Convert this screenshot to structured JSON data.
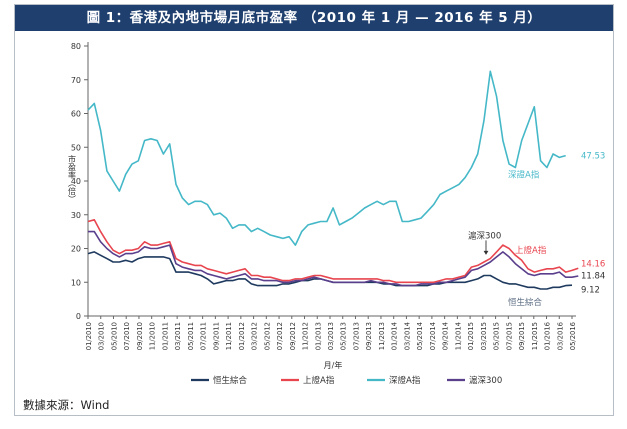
{
  "title": "圖 1：香港及內地市場月底市盈率 （2010 年 1 月 — 2016 年 5 月）",
  "source": "數據來源：Wind",
  "chart_data": {
    "type": "line",
    "xlabel": "月/年",
    "ylabel": "市盈率（倍）",
    "ylim": [
      0,
      80
    ],
    "yticks": [
      0,
      10,
      20,
      30,
      40,
      50,
      60,
      70,
      80
    ],
    "grid": false,
    "legend_position": "bottom",
    "x_tick_labels": [
      "01/2010",
      "03/2010",
      "05/2010",
      "07/2010",
      "09/2010",
      "11/2010",
      "01/2011",
      "03/2011",
      "05/2011",
      "07/2011",
      "09/2011",
      "11/2011",
      "01/2012",
      "03/2012",
      "05/2012",
      "07/2012",
      "09/2012",
      "11/2012",
      "01/2013",
      "03/2013",
      "05/2013",
      "07/2013",
      "09/2013",
      "11/2013",
      "01/2014",
      "03/2014",
      "05/2014",
      "07/2014",
      "09/2014",
      "11/2014",
      "01/2015",
      "03/2015",
      "05/2015",
      "07/2015",
      "09/2015",
      "11/2015",
      "01/2016",
      "03/2016",
      "05/2016"
    ],
    "series": [
      {
        "name": "恒生綜合",
        "color": "#1f3a5f",
        "label": "恒生綜合",
        "end_value": "9.12",
        "values": [
          18.5,
          19,
          18,
          17,
          16,
          16,
          16.5,
          16,
          17,
          17.5,
          17.5,
          17.5,
          17.5,
          17,
          13,
          13,
          13,
          12.5,
          12,
          11,
          9.5,
          10,
          10.5,
          10.5,
          11,
          11,
          9.5,
          9,
          9,
          9,
          9,
          9.5,
          9.5,
          10,
          10.5,
          10.5,
          11,
          11,
          10.5,
          10,
          10,
          10,
          10,
          10,
          10,
          10,
          10,
          9.5,
          9.5,
          9,
          9,
          9,
          9,
          9,
          9,
          9.5,
          9.5,
          10,
          10,
          10,
          10,
          10.5,
          11,
          12,
          12,
          11,
          10,
          9.5,
          9.5,
          9,
          8.5,
          8.5,
          8,
          8,
          8.5,
          8.5,
          9,
          9.12
        ]
      },
      {
        "name": "上證A指",
        "color": "#e8454f",
        "label": "上證A指",
        "end_value": "14.16",
        "values": [
          28,
          28.5,
          25,
          22,
          19.5,
          18.5,
          19.5,
          19.5,
          20,
          22,
          21,
          21,
          21.5,
          22,
          17,
          16,
          15.5,
          15,
          15,
          14,
          13.5,
          13,
          12.5,
          13,
          13.5,
          14,
          12,
          12,
          11.5,
          11.5,
          11,
          10.5,
          10.5,
          11,
          11,
          11.5,
          12,
          12,
          11.5,
          11,
          11,
          11,
          11,
          11,
          11,
          11,
          11,
          10.5,
          10.5,
          10,
          10,
          10,
          10,
          10,
          10,
          10,
          10.5,
          11,
          11,
          11.5,
          12,
          14.5,
          15,
          16,
          17,
          19,
          21,
          20,
          18,
          16.5,
          14,
          13,
          13.5,
          14,
          14,
          14.5,
          13,
          13.5,
          14.16
        ]
      },
      {
        "name": "深證A指",
        "color": "#45b8c8",
        "label": "深證A指",
        "end_value": "47.53",
        "values": [
          61,
          63,
          55,
          43,
          40,
          37,
          42,
          45,
          46,
          52,
          52.5,
          52,
          48,
          51,
          39,
          35,
          33,
          34,
          34,
          33,
          30,
          30.5,
          29,
          26,
          27,
          27,
          25,
          26,
          25,
          24,
          23.5,
          23,
          23.5,
          21,
          25,
          27,
          27.5,
          28,
          28,
          32,
          27,
          28,
          29,
          30.5,
          32,
          33,
          34,
          33,
          34,
          34,
          28,
          28,
          28.5,
          29,
          31,
          33,
          36,
          37,
          38,
          39,
          41,
          44,
          48,
          58,
          72.5,
          65,
          52,
          45,
          44,
          52,
          57,
          62,
          46,
          44,
          48,
          47,
          47.53
        ]
      },
      {
        "name": "滬深300",
        "color": "#5a3f8c",
        "label": "滬深300",
        "end_value": "11.84",
        "values": [
          25,
          25,
          22,
          20,
          18.5,
          17.5,
          18.5,
          18.5,
          19,
          20.5,
          20,
          20,
          20.5,
          21,
          15.5,
          14.5,
          14,
          13.5,
          13.5,
          12.5,
          12,
          11.5,
          11,
          11.5,
          12,
          12.5,
          11,
          11,
          10.5,
          10.5,
          10.5,
          10,
          10,
          10.5,
          10.5,
          11,
          11.5,
          11,
          10.5,
          10,
          10,
          10,
          10,
          10,
          10,
          10.5,
          10,
          10,
          9.5,
          9.5,
          9,
          9,
          9,
          9.5,
          9.5,
          9.5,
          10,
          10,
          10.5,
          11,
          11.5,
          13.5,
          14,
          15,
          16,
          17.5,
          19,
          17.5,
          15.5,
          14,
          12.5,
          12,
          12.5,
          12.5,
          12.5,
          13,
          11.5,
          11.5,
          11.84
        ]
      }
    ],
    "annotations": [
      {
        "text": "滬深300",
        "series": "滬深300"
      }
    ]
  }
}
